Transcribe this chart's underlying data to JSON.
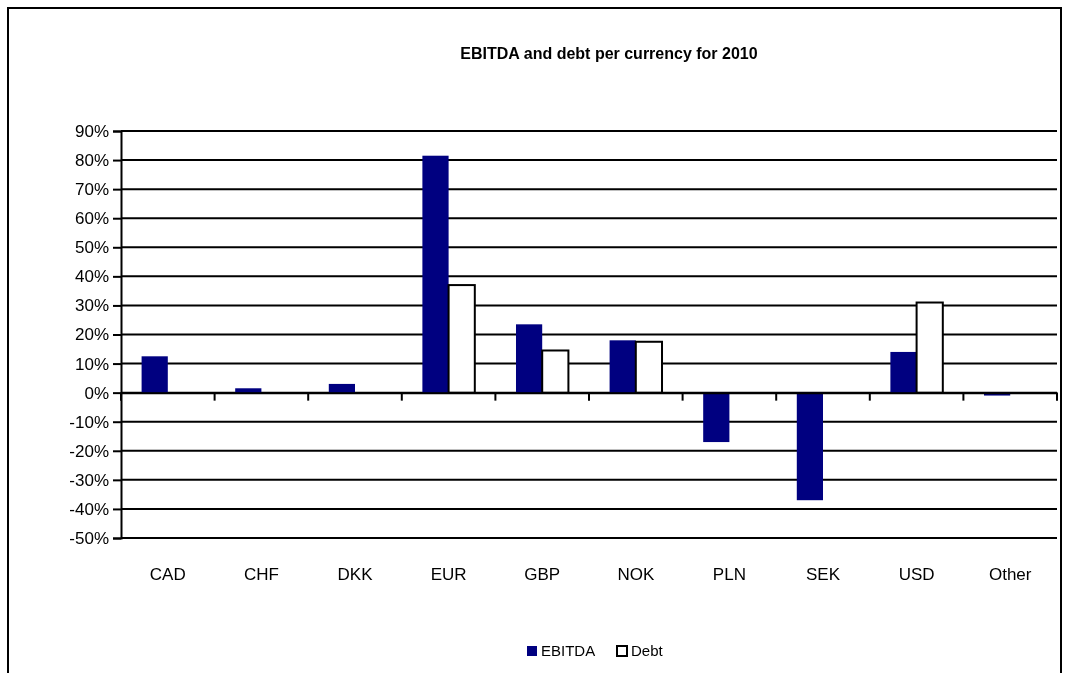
{
  "chart_data": {
    "type": "bar",
    "title": "EBITDA and debt per currency for 2010",
    "categories": [
      "CAD",
      "CHF",
      "DKK",
      "EUR",
      "GBP",
      "NOK",
      "PLN",
      "SEK",
      "USD",
      "Other"
    ],
    "series": [
      {
        "name": "EBITDA",
        "color": "#000080",
        "values": [
          12.5,
          1.5,
          3,
          81.5,
          23.5,
          18,
          -17,
          -37,
          14,
          -1
        ]
      },
      {
        "name": "Debt",
        "color": "#ffffff",
        "values": [
          null,
          null,
          null,
          37,
          14.5,
          17.5,
          null,
          null,
          31,
          null
        ]
      }
    ],
    "ylim": [
      -50,
      90
    ],
    "yticks": [
      {
        "value": -50,
        "label": "-50%"
      },
      {
        "value": -40,
        "label": "-40%"
      },
      {
        "value": -30,
        "label": "-30%"
      },
      {
        "value": -20,
        "label": "-20%"
      },
      {
        "value": -10,
        "label": "-10%"
      },
      {
        "value": 0,
        "label": "0%"
      },
      {
        "value": 10,
        "label": "10%"
      },
      {
        "value": 20,
        "label": "20%"
      },
      {
        "value": 30,
        "label": "30%"
      },
      {
        "value": 40,
        "label": "40%"
      },
      {
        "value": 50,
        "label": "50%"
      },
      {
        "value": 60,
        "label": "60%"
      },
      {
        "value": 70,
        "label": "70%"
      },
      {
        "value": 80,
        "label": "80%"
      },
      {
        "value": 90,
        "label": "90%"
      }
    ],
    "grid": "y",
    "legend": "bottom"
  }
}
